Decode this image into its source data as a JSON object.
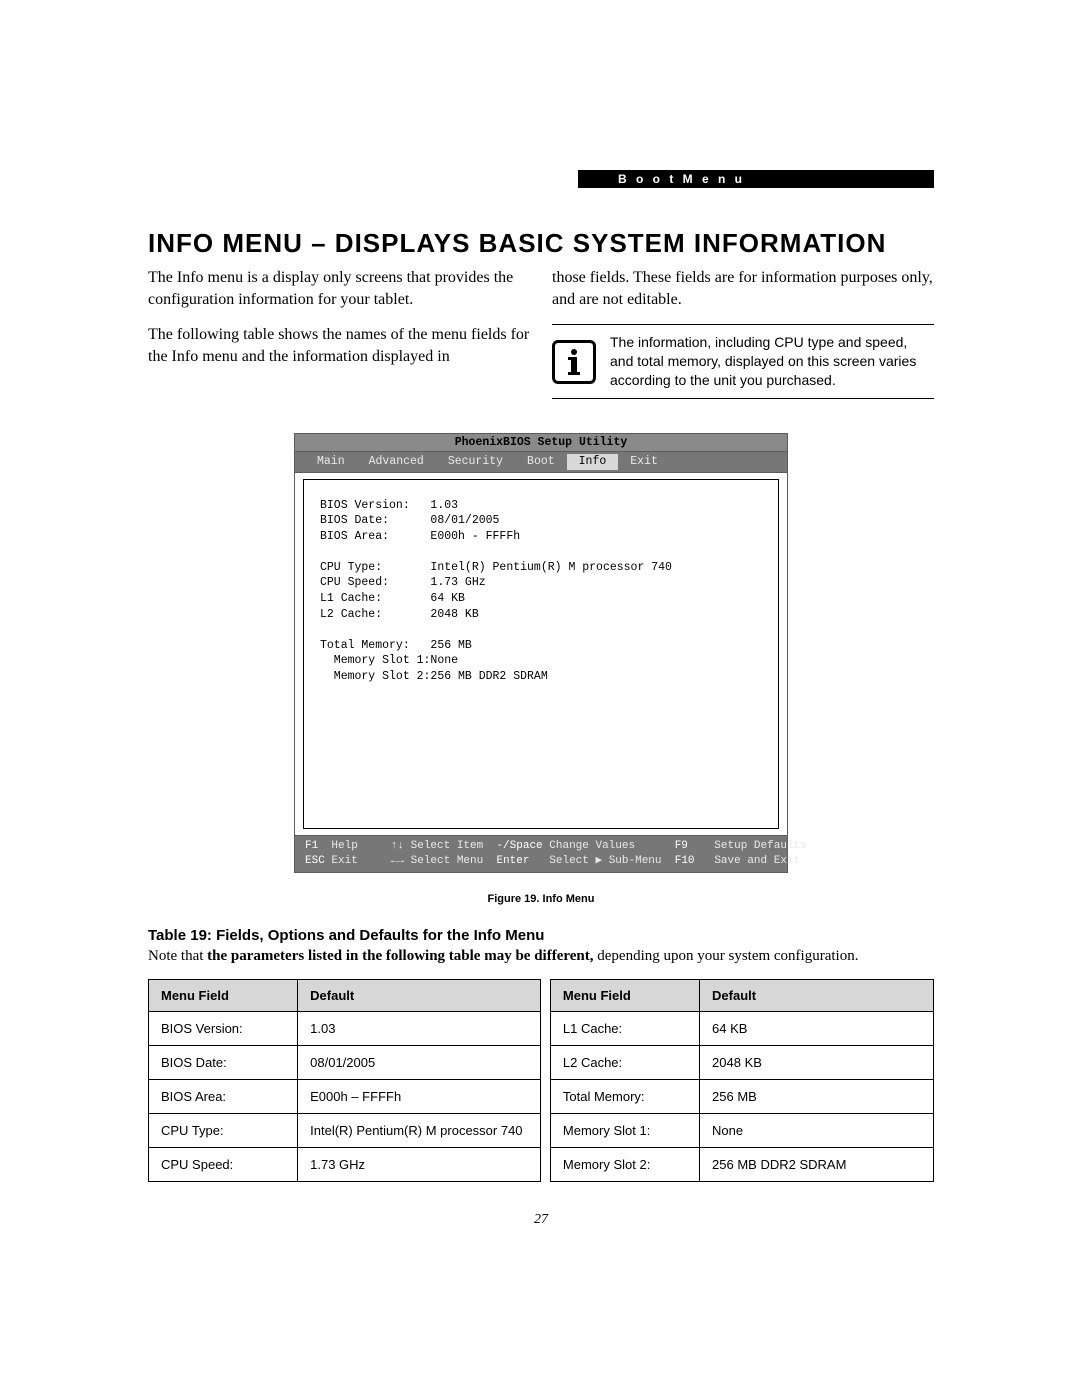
{
  "header": {
    "section_label": "B o o t   M e n u"
  },
  "title": "INFO MENU – DISPLAYS BASIC SYSTEM INFORMATION",
  "paragraphs": {
    "left1": "The Info menu is a display only screens that provides the configuration information for your tablet.",
    "left2": "The following table shows the names of the menu fields for the Info menu and the information displayed in",
    "right1": "those fields. These fields are for information purposes only, and are not editable."
  },
  "note": {
    "text": "The information, including CPU type and speed, and total memory, displayed on this screen varies according to the unit you purchased."
  },
  "bios": {
    "title": "PhoenixBIOS Setup Utility",
    "tabs": [
      "Main",
      "Advanced",
      "Security",
      "Boot",
      "Info",
      "Exit"
    ],
    "active_tab_index": 4,
    "colors": {
      "tab_bg": "#777777",
      "tab_fg": "#e9e9e9",
      "active_bg": "#d8d8d8",
      "title_bg": "#8a8a8a",
      "body_bg": "#ffffff",
      "border": "#5c5c5c"
    },
    "rows": [
      {
        "label": "BIOS Version:",
        "value": "1.03"
      },
      {
        "label": "BIOS Date:",
        "value": "08/01/2005"
      },
      {
        "label": "BIOS Area:",
        "value": "E000h - FFFFh"
      },
      {
        "blank": true
      },
      {
        "label": "CPU Type:",
        "value": "Intel(R) Pentium(R) M processor 740"
      },
      {
        "label": "CPU Speed:",
        "value": "1.73 GHz"
      },
      {
        "label": "L1 Cache:",
        "value": "64 KB"
      },
      {
        "label": "L2 Cache:",
        "value": "2048 KB"
      },
      {
        "blank": true
      },
      {
        "label": "Total Memory:",
        "value": "256 MB"
      },
      {
        "label": "  Memory Slot 1:",
        "value": "None",
        "indent": true
      },
      {
        "label": "  Memory Slot 2:",
        "value": "256 MB DDR2 SDRAM",
        "indent": true
      }
    ],
    "footer": {
      "line1": {
        "k1": "F1",
        "l1": "Help",
        "nav1": "↑↓ Select Item",
        "k2": "-/Space",
        "l2": "Change Values",
        "k3": "F9",
        "l3": "Setup Defaults"
      },
      "line2": {
        "k1": "ESC",
        "l1": "Exit",
        "nav1": "←→ Select Menu",
        "k2": "Enter",
        "l2": "Select ▶ Sub-Menu",
        "k3": "F10",
        "l3": "Save and Exit"
      }
    }
  },
  "figure_caption": "Figure 19.   Info Menu",
  "table": {
    "title": "Table 19: Fields, Options and Defaults for the Info Menu",
    "note_prefix": "Note that ",
    "note_bold": "the parameters listed in the following table may be different,",
    "note_suffix": " depending upon your system configuration.",
    "headers": {
      "c1": "Menu Field",
      "c2": "Default",
      "c3": "Menu Field",
      "c4": "Default"
    },
    "rows": [
      {
        "c1": "BIOS Version:",
        "c2": "1.03",
        "c3": "L1 Cache:",
        "c4": "64 KB"
      },
      {
        "c1": "BIOS Date:",
        "c2": "08/01/2005",
        "c3": "L2 Cache:",
        "c4": "2048 KB"
      },
      {
        "c1": "BIOS Area:",
        "c2": "E000h – FFFFh",
        "c3": "Total Memory:",
        "c4": "256 MB"
      },
      {
        "c1": "CPU Type:",
        "c2": "Intel(R) Pentium(R) M processor 740",
        "c3": "Memory Slot 1:",
        "c4": "None"
      },
      {
        "c1": "CPU Speed:",
        "c2": "1.73 GHz",
        "c3": "Memory Slot 2:",
        "c4": "256 MB DDR2 SDRAM"
      }
    ]
  },
  "page_number": "27"
}
